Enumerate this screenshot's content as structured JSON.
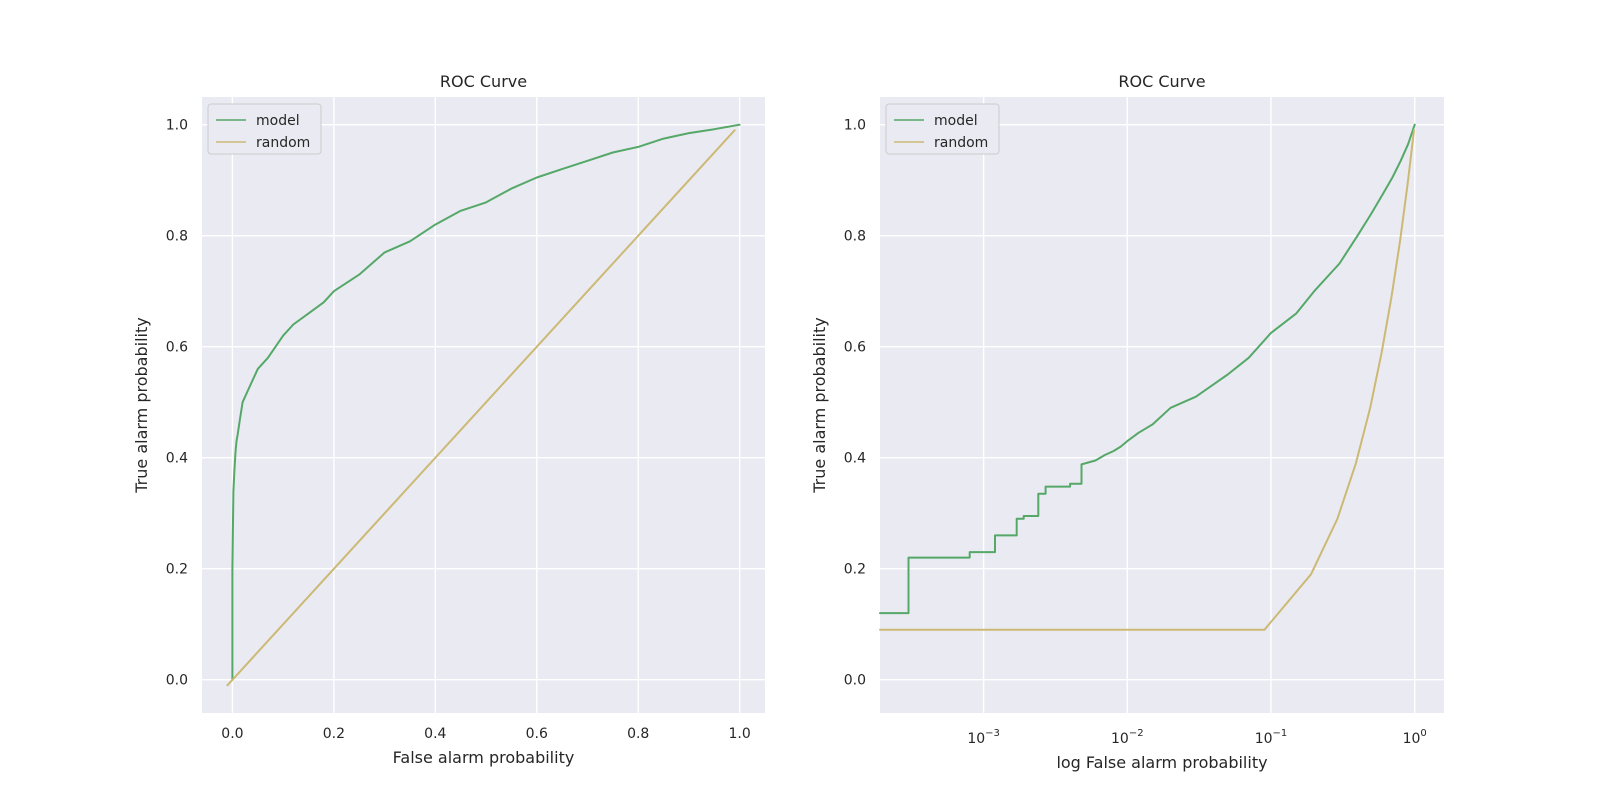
{
  "chart_data": [
    {
      "type": "line",
      "title": "ROC Curve",
      "xlabel": "False alarm probability",
      "ylabel": "True alarm probability",
      "xscale": "linear",
      "xlim": [
        -0.06,
        1.05
      ],
      "ylim": [
        -0.06,
        1.05
      ],
      "xticks": [
        0.0,
        0.2,
        0.4,
        0.6,
        0.8,
        1.0
      ],
      "xtick_labels": [
        "0.0",
        "0.2",
        "0.4",
        "0.6",
        "0.8",
        "1.0"
      ],
      "yticks": [
        0.0,
        0.2,
        0.4,
        0.6,
        0.8,
        1.0
      ],
      "ytick_labels": [
        "0.0",
        "0.2",
        "0.4",
        "0.6",
        "0.8",
        "1.0"
      ],
      "grid": true,
      "legend": "upper-left",
      "series": [
        {
          "name": "model",
          "color": "#55a868",
          "x": [
            0.0,
            0.0,
            0.002,
            0.004,
            0.006,
            0.008,
            0.01,
            0.015,
            0.02,
            0.03,
            0.05,
            0.07,
            0.1,
            0.12,
            0.15,
            0.18,
            0.2,
            0.25,
            0.3,
            0.35,
            0.4,
            0.45,
            0.5,
            0.55,
            0.6,
            0.65,
            0.7,
            0.75,
            0.8,
            0.85,
            0.9,
            0.95,
            1.0
          ],
          "y": [
            0.0,
            0.2,
            0.34,
            0.38,
            0.41,
            0.43,
            0.44,
            0.47,
            0.5,
            0.52,
            0.56,
            0.58,
            0.62,
            0.64,
            0.66,
            0.68,
            0.7,
            0.73,
            0.77,
            0.79,
            0.82,
            0.845,
            0.86,
            0.885,
            0.905,
            0.92,
            0.935,
            0.95,
            0.96,
            0.975,
            0.985,
            0.992,
            1.0
          ]
        },
        {
          "name": "random",
          "color": "#ccb974",
          "x": [
            -0.01,
            0.99
          ],
          "y": [
            -0.01,
            0.99
          ]
        }
      ]
    },
    {
      "type": "line",
      "title": "ROC Curve",
      "xlabel": "log False alarm probability",
      "ylabel": "True alarm probability",
      "xscale": "log",
      "xlim": [
        0.00019,
        1.6
      ],
      "ylim": [
        -0.06,
        1.05
      ],
      "xticks": [
        0.001,
        0.01,
        0.1,
        1
      ],
      "xtick_labels": [
        {
          "base": "10",
          "exp": "−3"
        },
        {
          "base": "10",
          "exp": "−2"
        },
        {
          "base": "10",
          "exp": "−1"
        },
        {
          "base": "10",
          "exp": "0"
        }
      ],
      "yticks": [
        0.0,
        0.2,
        0.4,
        0.6,
        0.8,
        1.0
      ],
      "ytick_labels": [
        "0.0",
        "0.2",
        "0.4",
        "0.6",
        "0.8",
        "1.0"
      ],
      "grid": true,
      "legend": "upper-left",
      "series": [
        {
          "name": "model",
          "color": "#55a868",
          "step": true,
          "x": [
            0.00019,
            0.0003,
            0.0003,
            0.0008,
            0.0008,
            0.0012,
            0.0012,
            0.0017,
            0.0017,
            0.0019,
            0.0019,
            0.0024,
            0.0024,
            0.0027,
            0.0027,
            0.004,
            0.004,
            0.0048,
            0.0048,
            0.006,
            0.007,
            0.008,
            0.009,
            0.01,
            0.012,
            0.015,
            0.02,
            0.03,
            0.05,
            0.07,
            0.1,
            0.15,
            0.2,
            0.3,
            0.4,
            0.5,
            0.6,
            0.7,
            0.8,
            0.9,
            1.0
          ],
          "y": [
            0.12,
            0.12,
            0.22,
            0.22,
            0.23,
            0.23,
            0.26,
            0.26,
            0.29,
            0.29,
            0.295,
            0.295,
            0.335,
            0.335,
            0.348,
            0.348,
            0.353,
            0.353,
            0.388,
            0.395,
            0.405,
            0.412,
            0.42,
            0.43,
            0.445,
            0.46,
            0.49,
            0.51,
            0.55,
            0.58,
            0.625,
            0.66,
            0.7,
            0.75,
            0.8,
            0.84,
            0.875,
            0.905,
            0.935,
            0.965,
            1.0
          ]
        },
        {
          "name": "random",
          "color": "#ccb974",
          "x": [
            0.00019,
            0.09,
            0.19,
            0.29,
            0.39,
            0.49,
            0.59,
            0.69,
            0.79,
            0.89,
            0.99
          ],
          "y": [
            0.09,
            0.09,
            0.19,
            0.29,
            0.39,
            0.49,
            0.59,
            0.69,
            0.79,
            0.89,
            0.99
          ]
        }
      ]
    }
  ]
}
